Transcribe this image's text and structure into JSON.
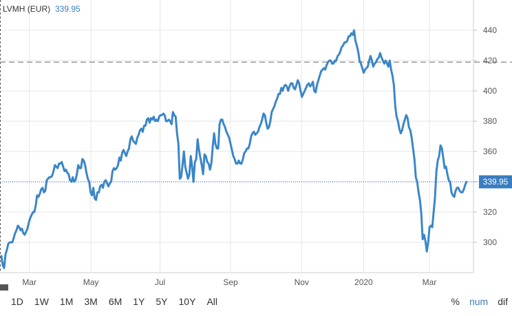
{
  "chart_data": {
    "type": "line",
    "title": "LVMH (EUR)",
    "last_value_label": "339.95",
    "price_tag": "339.95",
    "ylim": [
      280,
      460
    ],
    "y_ticks": [
      300,
      320,
      340,
      360,
      380,
      400,
      420,
      440
    ],
    "x_tick_labels": [
      "Mar",
      "May",
      "Jul",
      "Sep",
      "Nov",
      "2020",
      "Mar"
    ],
    "reference_line": 419,
    "current_line": 339.95,
    "grid": true,
    "colors": {
      "line": "#3a86c8",
      "reference": "#999999",
      "current": "#3366dd",
      "label_box": "#3a7dbf"
    },
    "series": [
      {
        "values": [
          291,
          285,
          283,
          292,
          295,
          299,
          300,
          300,
          300,
          303,
          306,
          308,
          311,
          310,
          308,
          309,
          306,
          305,
          307,
          309,
          313,
          316,
          318,
          320,
          320,
          324,
          331,
          330,
          332,
          335,
          336,
          333,
          334,
          341,
          342,
          343,
          343,
          344,
          347,
          351,
          350,
          349,
          352,
          352,
          353,
          350,
          347,
          348,
          346,
          345,
          341,
          340,
          343,
          340,
          341,
          345,
          351,
          349,
          349,
          355,
          354,
          351,
          346,
          342,
          340,
          333,
          331,
          336,
          329,
          328,
          333,
          333,
          337,
          338,
          336,
          340,
          341,
          339,
          337,
          339,
          340,
          347,
          349,
          348,
          349,
          351,
          356,
          354,
          359,
          361,
          359,
          357,
          360,
          362,
          368,
          370,
          367,
          366,
          365,
          369,
          371,
          374,
          375,
          373,
          377,
          377,
          381,
          382,
          379,
          382,
          381,
          383,
          380,
          381,
          380,
          383,
          384,
          384,
          385,
          384,
          380,
          380,
          381,
          380,
          378,
          386,
          384,
          383,
          372,
          365,
          342,
          343,
          351,
          360,
          350,
          346,
          342,
          345,
          357,
          350,
          340,
          353,
          355,
          368,
          361,
          356,
          351,
          345,
          358,
          357,
          353,
          352,
          348,
          352,
          363,
          372,
          365,
          362,
          362,
          378,
          381,
          381,
          378,
          376,
          373,
          371,
          369,
          365,
          361,
          357,
          355,
          352,
          352,
          354,
          352,
          352,
          355,
          359,
          360,
          362,
          362,
          365,
          370,
          372,
          373,
          371,
          372,
          373,
          376,
          378,
          381,
          385,
          384,
          379,
          375,
          376,
          380,
          386,
          388,
          390,
          393,
          395,
          398,
          398,
          402,
          400,
          403,
          404,
          403,
          400,
          403,
          405,
          405,
          402,
          401,
          404,
          407,
          405,
          400,
          396,
          398,
          400,
          402,
          404,
          405,
          403,
          404,
          406,
          400,
          399,
          404,
          407,
          410,
          413,
          414,
          415,
          414,
          417,
          419,
          420,
          420,
          418,
          418,
          420,
          420,
          423,
          424,
          426,
          429,
          430,
          432,
          432,
          433,
          436,
          436,
          438,
          437,
          440,
          433,
          430,
          426,
          420,
          418,
          415,
          412,
          414,
          415,
          416,
          420,
          423,
          420,
          416,
          418,
          419,
          421,
          422,
          425,
          422,
          420,
          418,
          420,
          418,
          416,
          420,
          414,
          410,
          404,
          390,
          383,
          380,
          375,
          372,
          374,
          378,
          381,
          384,
          382,
          376,
          374,
          369,
          362,
          355,
          343,
          340,
          333,
          328,
          319,
          302,
          305,
          301,
          294,
          300,
          310,
          311,
          310,
          320,
          330,
          347,
          354,
          357,
          364,
          362,
          356,
          349,
          350,
          345,
          341,
          340,
          333,
          331,
          330,
          334,
          336,
          336,
          334,
          333,
          333,
          335,
          338,
          339.95
        ]
      }
    ]
  },
  "range_buttons": [
    "1D",
    "1W",
    "1M",
    "3M",
    "6M",
    "1Y",
    "5Y",
    "10Y",
    "All"
  ],
  "mode_buttons": [
    "%",
    "num",
    "dif"
  ]
}
